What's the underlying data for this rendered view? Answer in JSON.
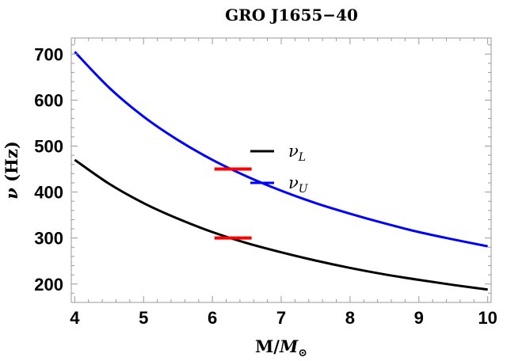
{
  "chart_data": {
    "type": "line",
    "title": "GRO J1655−40",
    "xlabel": {
      "main": "M/",
      "italic": "M",
      "sub": "⊙"
    },
    "ylabel": {
      "symbol": "ν",
      "unit": "(Hz)"
    },
    "xlim": [
      3.95,
      10.05
    ],
    "ylim": [
      160,
      735
    ],
    "xticks": [
      4,
      5,
      6,
      7,
      8,
      9,
      10
    ],
    "yticks": [
      200,
      300,
      400,
      500,
      600,
      700
    ],
    "legend_placement": "center",
    "series": [
      {
        "name": "ν",
        "name_sub": "L",
        "color": "#000000",
        "x": [
          4,
          4.5,
          5,
          5.5,
          6,
          6.5,
          7,
          7.5,
          8,
          8.5,
          9,
          9.5,
          10
        ],
        "y": [
          470,
          418,
          376,
          342,
          313,
          289,
          269,
          251,
          235,
          221,
          209,
          198,
          188
        ]
      },
      {
        "name": "ν",
        "name_sub": "U",
        "color": "#0000ff",
        "x": [
          4,
          4.5,
          5,
          5.5,
          6,
          6.5,
          7,
          7.5,
          8,
          8.5,
          9,
          9.5,
          10
        ],
        "y": [
          705,
          627,
          564,
          513,
          470,
          434,
          403,
          376,
          353,
          332,
          313,
          297,
          282
        ]
      }
    ],
    "observations": [
      {
        "x_range": [
          6.03,
          6.57
        ],
        "y": 450,
        "color": "#ff0000"
      },
      {
        "x_range": [
          6.03,
          6.57
        ],
        "y": 300,
        "color": "#ff0000"
      }
    ]
  }
}
